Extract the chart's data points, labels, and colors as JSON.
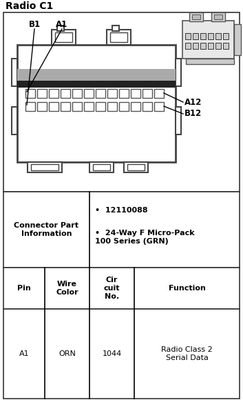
{
  "title": "Radio C1",
  "title_fontsize": 10,
  "bg_color": "#ffffff",
  "border_color": "#000000",
  "connector_info_left": "Connector Part\nInformation",
  "connector_info_right_line1": "12110088",
  "connector_info_right_line2": "24-Way F Micro-Pack\n100 Series (GRN)",
  "header_pin": "Pin",
  "header_wire": "Wire\nColor",
  "header_circuit": "Cir\ncuit\nNo.",
  "header_function": "Function",
  "row_pin": "A1",
  "row_wire": "ORN",
  "row_circuit": "1044",
  "row_function": "Radio Class 2\nSerial Data",
  "text_color": "#000000",
  "body_fontsize": 8.0,
  "header_fontsize": 8.0,
  "label_b1": "B1",
  "label_a1": "A1",
  "label_a12": "A12",
  "label_b12": "B12"
}
